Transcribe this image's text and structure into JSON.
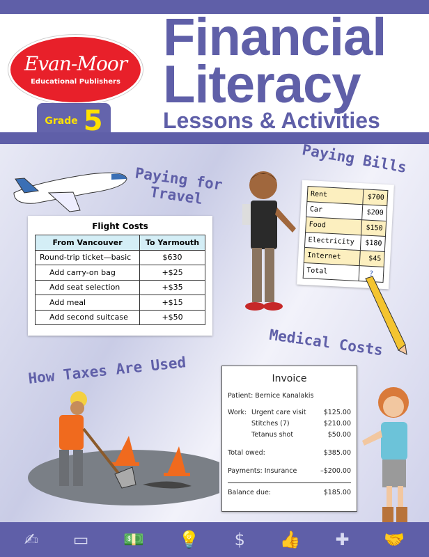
{
  "publisher": {
    "name": "Evan-Moor",
    "tagline": "Educational Publishers"
  },
  "grade": {
    "label": "Grade",
    "number": "5"
  },
  "title": {
    "line1": "Financial",
    "line2": "Literacy",
    "subtitle": "Lessons & Activities"
  },
  "sections": {
    "travel": "Paying for Travel",
    "bills": "Paying Bills",
    "medical": "Medical Costs",
    "taxes": "How Taxes Are Used"
  },
  "flight": {
    "title": "Flight Costs",
    "headers": [
      "From Vancouver",
      "To Yarmouth"
    ],
    "rows": [
      [
        "Round-trip ticket—basic",
        "$630"
      ],
      [
        "Add carry-on bag",
        "+$25"
      ],
      [
        "Add seat selection",
        "+$35"
      ],
      [
        "Add meal",
        "+$15"
      ],
      [
        "Add second suitcase",
        "+$50"
      ]
    ]
  },
  "bills": {
    "rows": [
      [
        "Rent",
        "$700"
      ],
      [
        "Car",
        "$200"
      ],
      [
        "Food",
        "$150"
      ],
      [
        "Electricity",
        "$180"
      ],
      [
        "Internet",
        "$45"
      ],
      [
        "Total",
        "?"
      ]
    ]
  },
  "invoice": {
    "title": "Invoice",
    "patient": "Patient: Bernice Kanalakis",
    "work_label": "Work:",
    "items": [
      [
        "Urgent care visit",
        "$125.00"
      ],
      [
        "Stitches (7)",
        "$210.00"
      ],
      [
        "Tetanus shot",
        "$50.00"
      ]
    ],
    "total_label": "Total owed:",
    "total": "$385.00",
    "payments_label": "Payments: Insurance",
    "payments": "–$200.00",
    "balance_label": "Balance due:",
    "balance": "$185.00"
  },
  "icons": [
    "check-pen-icon",
    "eraser-icon",
    "money-icon",
    "lightbulb-icon",
    "dollar-sign-icon",
    "thumbs-up-icon",
    "medical-cross-icon",
    "handshake-icon"
  ],
  "colors": {
    "brand_purple": "#5f5fa8",
    "logo_red": "#e8202a",
    "grade_yellow": "#ffe100"
  }
}
